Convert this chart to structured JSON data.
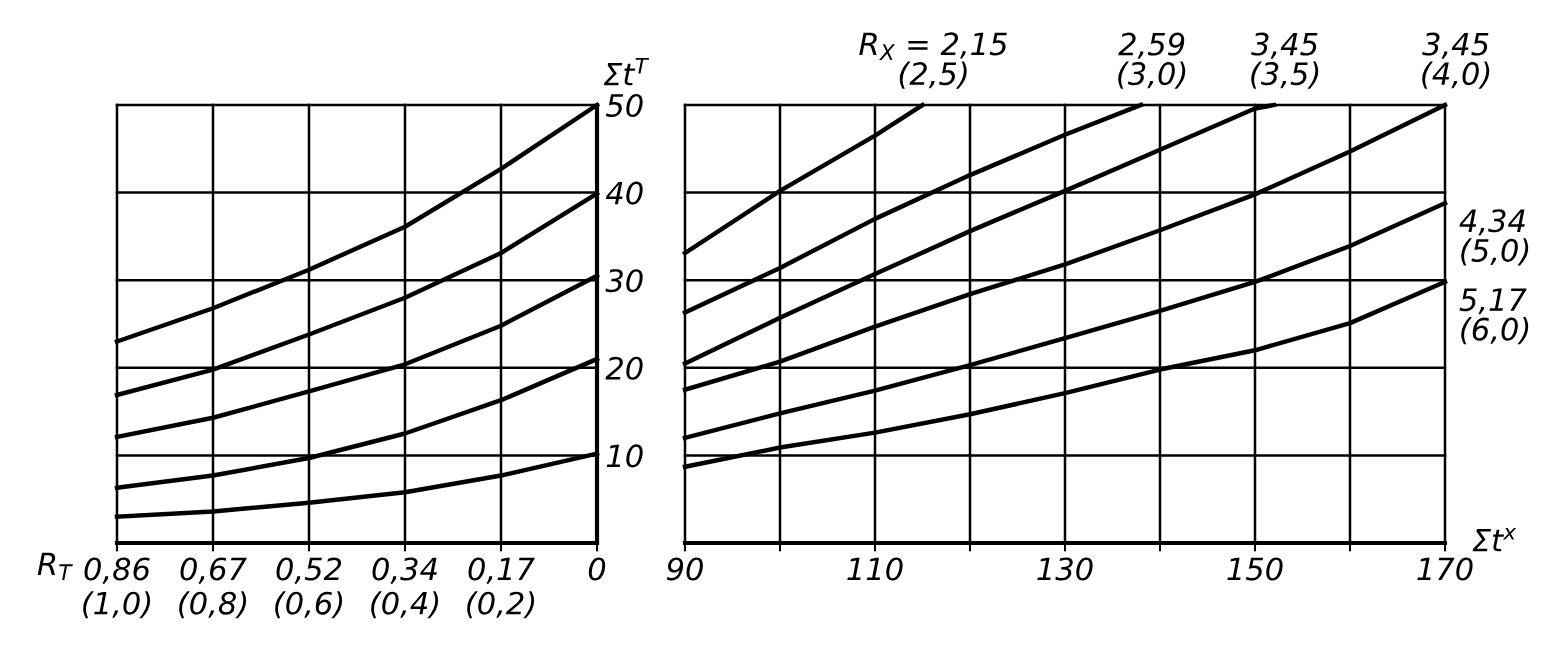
{
  "chart_data": [
    {
      "type": "line",
      "xlabel": "R$_{T}$",
      "ylabel": "Σt$^{T}$",
      "ylim": [
        0,
        50
      ],
      "grid": true,
      "line_style": "solid",
      "marker": "none",
      "categories": [
        "0,86\n(1,0)",
        "0,67\n(0,8)",
        "0,52\n(0,6)",
        "0,34\n(0,4)",
        "0,17\n(0,2)",
        "0"
      ],
      "yticks": [
        10,
        20,
        30,
        40,
        50
      ],
      "series": [
        {
          "color": "#000000",
          "values": [
            23.0,
            26.8,
            31.2,
            36.1,
            42.7,
            50
          ]
        },
        {
          "color": "#000000",
          "values": [
            16.9,
            19.8,
            23.8,
            28.0,
            33.1,
            39.9
          ]
        },
        {
          "color": "#000000",
          "values": [
            12.1,
            14.3,
            17.3,
            20.4,
            24.8,
            30.5
          ]
        },
        {
          "color": "#000000",
          "values": [
            6.3,
            7.7,
            9.7,
            12.5,
            16.3,
            21.0
          ]
        },
        {
          "color": "#000000",
          "values": [
            3.0,
            3.6,
            4.6,
            5.8,
            7.7,
            10.2
          ]
        }
      ]
    },
    {
      "type": "line",
      "xlabel": "Σt$^{x}$",
      "xlim": [
        90,
        170
      ],
      "ylim": [
        0,
        50
      ],
      "grid": true,
      "tick_labels": "x",
      "line_style": "solid",
      "marker": "none",
      "xticks": [
        90,
        {
          "value": 100,
          "label": null
        },
        110,
        {
          "value": 120,
          "label": null
        },
        130,
        {
          "value": 140,
          "label": null
        },
        150,
        {
          "value": 160,
          "label": null
        },
        170
      ],
      "yticks": [
        10,
        20,
        30,
        40,
        50
      ],
      "series": [
        {
          "name": "R$_{X}$ = 2,15\n(2,5)",
          "color": "#000000",
          "x": [
            90,
            100,
            110,
            115
          ],
          "values": [
            33.1,
            40.2,
            46.5,
            50
          ]
        },
        {
          "name": "2,59\n(3,0)",
          "color": "#000000",
          "x": [
            90,
            100,
            110,
            120,
            130,
            138
          ],
          "values": [
            26.3,
            31.4,
            37.0,
            42.0,
            46.6,
            50
          ]
        },
        {
          "name": "3,45\n(3,5)",
          "color": "#000000",
          "x": [
            90,
            100,
            110,
            120,
            130,
            140,
            150,
            152
          ],
          "values": [
            20.5,
            25.7,
            30.7,
            35.6,
            40.2,
            44.9,
            49.6,
            50
          ]
        },
        {
          "name": "3,45\n(4,0)",
          "color": "#000000",
          "x": [
            90,
            100,
            110,
            120,
            130,
            140,
            150,
            160,
            170
          ],
          "values": [
            17.5,
            20.7,
            24.7,
            28.4,
            31.8,
            35.7,
            39.8,
            44.7,
            50
          ]
        },
        {
          "name": "4,34\n(5,0)",
          "color": "#000000",
          "x": [
            90,
            100,
            110,
            120,
            130,
            140,
            150,
            160,
            170
          ],
          "values": [
            12.0,
            14.8,
            17.4,
            20.3,
            23.4,
            26.5,
            29.8,
            33.9,
            38.8
          ]
        },
        {
          "name": "5,17\n(6,0)",
          "color": "#000000",
          "x": [
            90,
            100,
            110,
            120,
            130,
            140,
            150,
            160,
            170
          ],
          "values": [
            8.7,
            10.9,
            12.6,
            14.7,
            17.1,
            19.8,
            22.0,
            25.1,
            29.8
          ]
        }
      ]
    }
  ]
}
